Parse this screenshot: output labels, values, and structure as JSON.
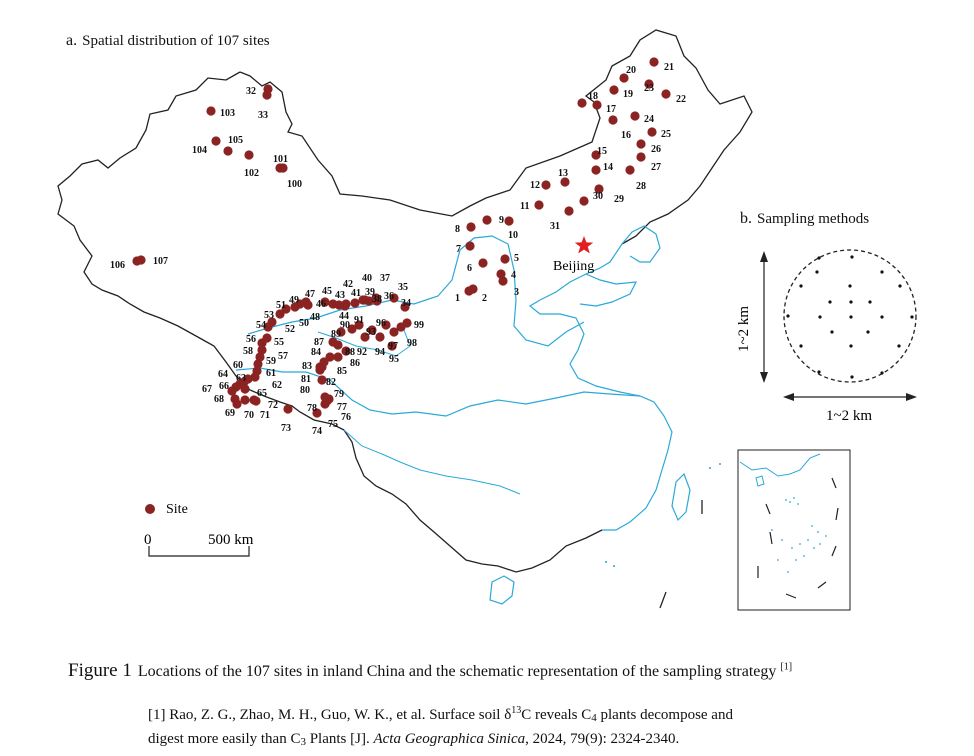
{
  "panel_a": {
    "letter": "a.",
    "title": "Spatial distribution of 107 sites"
  },
  "panel_b": {
    "letter": "b.",
    "title": "Sampling methods"
  },
  "legend": {
    "site_label": "Site"
  },
  "scalebar": {
    "zero": "0",
    "length_label": "500 km"
  },
  "city": {
    "name": "Beijing"
  },
  "sampling": {
    "vertical_label": "1~2 km",
    "horizontal_label": "1~2 km"
  },
  "caption": {
    "figure_label": "Figure 1",
    "text": "Locations of the 107 sites in inland China and the schematic representation of the sampling strategy",
    "ref_mark": "[1]"
  },
  "reference": {
    "line1_a": "[1] Rao, Z. G., Zhao, M. H., Guo, W. K., et al. Surface soil δ",
    "sup13": "13",
    "line1_b": "C reveals C",
    "sub4": "4",
    "line1_c": " plants decompose and",
    "line2_a": "digest more easily than C",
    "sub3": "3",
    "line2_b": " Plants [J]. ",
    "journal": "Acta Geographica Sinica",
    "line2_c": ", 2024, 79(9): 2324-2340."
  },
  "colors": {
    "site": "#8b2323",
    "river": "#2aa9d8",
    "star": "#e02020",
    "border": "#222222"
  },
  "site_labels": [
    "1",
    "2",
    "3",
    "4",
    "5",
    "6",
    "7",
    "8",
    "9",
    "10",
    "11",
    "12",
    "13",
    "14",
    "15",
    "16",
    "17",
    "18",
    "19",
    "20",
    "21",
    "22",
    "23",
    "24",
    "25",
    "26",
    "27",
    "28",
    "29",
    "30",
    "31",
    "32",
    "33",
    "34",
    "35",
    "36",
    "37",
    "38",
    "39",
    "40",
    "41",
    "42",
    "43",
    "44",
    "45",
    "46",
    "47",
    "48",
    "49",
    "50",
    "51",
    "52",
    "53",
    "54",
    "55",
    "56",
    "57",
    "58",
    "59",
    "60",
    "61",
    "62",
    "63",
    "64",
    "65",
    "66",
    "67",
    "68",
    "69",
    "70",
    "71",
    "72",
    "73",
    "74",
    "75",
    "76",
    "77",
    "78",
    "79",
    "80",
    "81",
    "82",
    "83",
    "84",
    "85",
    "86",
    "87",
    "88",
    "89",
    "90",
    "91",
    "92",
    "93",
    "94",
    "95",
    "96",
    "97",
    "98",
    "99",
    "100",
    "101",
    "102",
    "103",
    "104",
    "105",
    "106",
    "107"
  ]
}
